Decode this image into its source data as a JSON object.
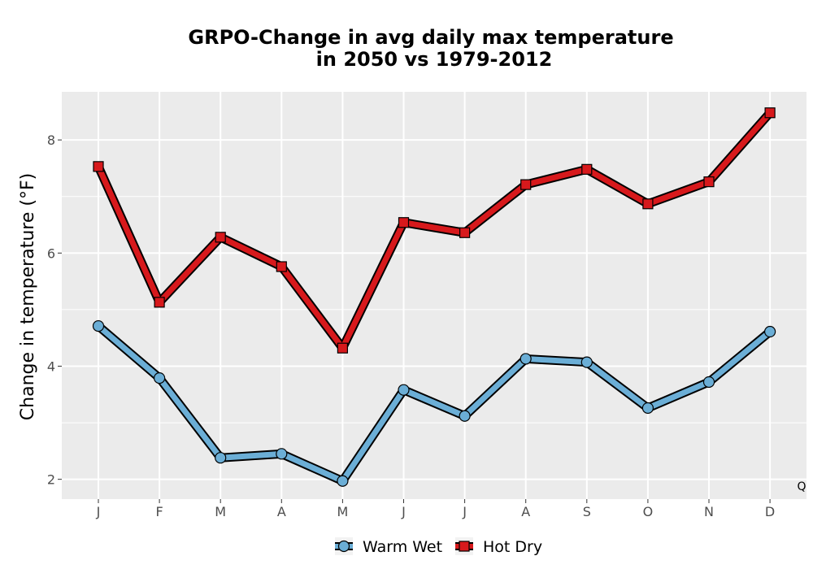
{
  "chart_data": {
    "type": "line",
    "title_lines": [
      "GRPO-Change in avg daily max temperature",
      "in 2050 vs 1979-2012"
    ],
    "ylabel": "Change in temperature (°F)",
    "xlabel": "",
    "categories": [
      "J",
      "F",
      "M",
      "A",
      "M",
      "J",
      "J",
      "A",
      "S",
      "O",
      "N",
      "D"
    ],
    "ylim": [
      1.65,
      8.85
    ],
    "y_ticks": [
      2,
      4,
      6,
      8
    ],
    "grid": true,
    "legend_position": "bottom",
    "corner_text": "Q",
    "series": [
      {
        "name": "Warm Wet",
        "marker": "circle",
        "color": "#6baed6",
        "values": [
          4.71,
          3.79,
          2.38,
          2.45,
          1.97,
          3.58,
          3.12,
          4.13,
          4.07,
          3.26,
          3.72,
          4.61
        ]
      },
      {
        "name": "Hot Dry",
        "marker": "square",
        "color": "#d7191c",
        "values": [
          7.53,
          5.13,
          6.28,
          5.76,
          4.32,
          6.54,
          6.36,
          7.21,
          7.48,
          6.87,
          7.26,
          8.48
        ]
      }
    ]
  },
  "colors": {
    "panel_bg": "#ebebeb",
    "grid": "#ffffff",
    "outline": "#000000"
  }
}
